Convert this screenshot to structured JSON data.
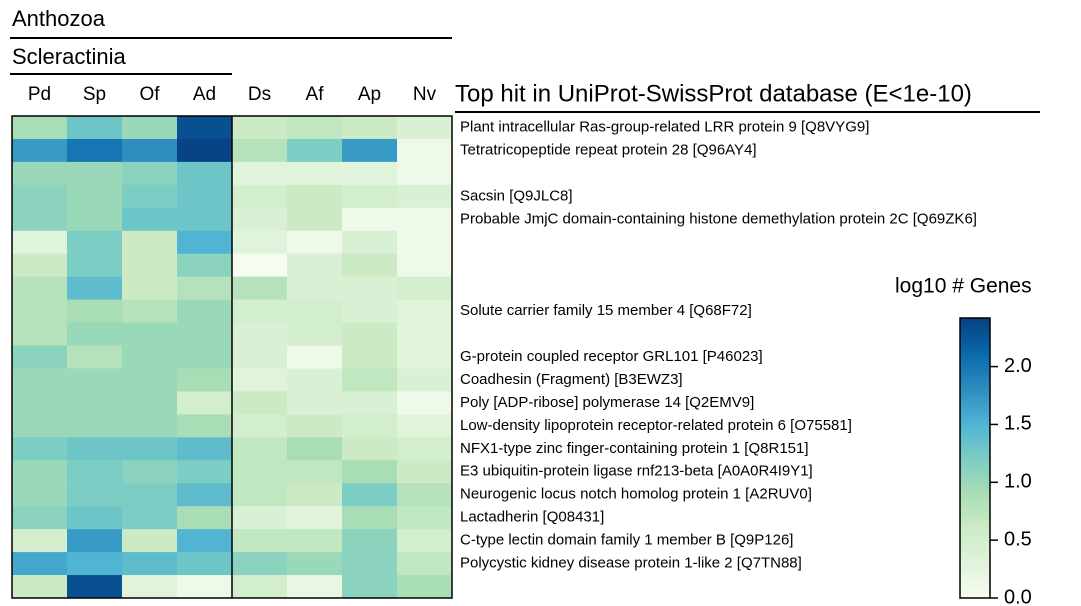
{
  "chart_data": {
    "type": "heatmap",
    "groups": [
      "Anthozoa",
      "Scleractinia"
    ],
    "categories": [
      "Pd",
      "Sp",
      "Of",
      "Ad",
      "Ds",
      "Af",
      "Ap",
      "Nv"
    ],
    "row_axis_title": "Top hit in UniProt-SwissProt database (E<1e-10)",
    "rows": [
      "Plant intracellular Ras-group-related LRR protein 9 [Q8VYG9]",
      "Tetratricopeptide repeat protein 28 [Q96AY4]",
      null,
      "Sacsin [Q9JLC8]",
      "Probable JmjC domain-containing histone demethylation protein 2C [Q69ZK6]",
      null,
      null,
      null,
      "Solute carrier family 15 member 4 [Q68F72]",
      null,
      "G-protein coupled receptor GRL101 [P46023]",
      "Coadhesin (Fragment) [B3EWZ3]",
      "Poly [ADP-ribose] polymerase 14 [Q2EMV9]",
      "Low-density lipoprotein receptor-related protein 6 [O75581]",
      "NFX1-type zinc finger-containing protein 1 [Q8R151]",
      "E3 ubiquitin-protein ligase rnf213-beta [A0A0R4I9Y1]",
      "Neurogenic locus notch homolog protein 1 [A2RUV0]",
      "Lactadherin [Q08431]",
      "C-type lectin domain family 1 member B [Q9P126]",
      "Polycystic kidney disease protein 1-like 2 [Q7TN88]",
      null
    ],
    "values": [
      [
        0.9,
        1.3,
        1.0,
        2.3,
        0.6,
        0.7,
        0.6,
        0.4
      ],
      [
        1.7,
        2.0,
        1.8,
        2.4,
        0.8,
        1.2,
        1.7,
        0.1
      ],
      [
        1.0,
        1.0,
        1.1,
        1.3,
        0.3,
        0.3,
        0.3,
        0.1
      ],
      [
        1.1,
        1.0,
        1.2,
        1.3,
        0.5,
        0.6,
        0.5,
        0.4
      ],
      [
        1.1,
        1.0,
        1.3,
        1.3,
        0.4,
        0.6,
        0.1,
        0.1
      ],
      [
        0.3,
        1.2,
        0.6,
        1.5,
        0.3,
        0.1,
        0.4,
        0.1
      ],
      [
        0.6,
        1.2,
        0.6,
        1.1,
        0.0,
        0.4,
        0.6,
        0.1
      ],
      [
        0.8,
        1.4,
        0.6,
        0.8,
        0.8,
        0.4,
        0.4,
        0.5
      ],
      [
        0.8,
        0.9,
        0.8,
        1.0,
        0.5,
        0.5,
        0.4,
        0.3
      ],
      [
        0.8,
        1.0,
        1.0,
        1.0,
        0.4,
        0.5,
        0.6,
        0.3
      ],
      [
        1.1,
        0.8,
        1.0,
        1.0,
        0.4,
        0.1,
        0.6,
        0.3
      ],
      [
        1.0,
        1.0,
        1.0,
        0.9,
        0.3,
        0.4,
        0.7,
        0.4
      ],
      [
        1.0,
        1.0,
        1.0,
        0.5,
        0.6,
        0.4,
        0.4,
        0.1
      ],
      [
        1.0,
        1.0,
        1.0,
        0.9,
        0.5,
        0.6,
        0.5,
        0.3
      ],
      [
        1.2,
        1.3,
        1.3,
        1.4,
        0.7,
        0.9,
        0.6,
        0.5
      ],
      [
        1.0,
        1.2,
        1.1,
        1.2,
        0.7,
        0.7,
        0.9,
        0.6
      ],
      [
        1.0,
        1.2,
        1.2,
        1.4,
        0.7,
        0.6,
        1.2,
        0.8
      ],
      [
        1.1,
        1.3,
        1.2,
        0.9,
        0.4,
        0.3,
        0.9,
        0.7
      ],
      [
        0.5,
        1.7,
        0.6,
        1.5,
        0.7,
        0.7,
        1.1,
        0.5
      ],
      [
        1.6,
        1.5,
        1.4,
        1.3,
        1.1,
        1.0,
        1.1,
        0.7
      ],
      [
        0.6,
        2.3,
        0.3,
        0.1,
        0.5,
        0.2,
        1.1,
        0.9
      ]
    ],
    "colorbar_title": "log10 # Genes",
    "zlim": [
      0,
      2.42
    ],
    "zticks": [
      {
        "value": 0,
        "label": "0.0"
      },
      0.5,
      {
        "value": 1,
        "label": "1.0"
      },
      1.5,
      {
        "value": 2,
        "label": "2.0"
      }
    ],
    "colorscale": [
      "#f7fcf0",
      "#e0f3db",
      "#ccebc5",
      "#a8ddb5",
      "#7bccc4",
      "#4eb3d3",
      "#2b8cbe",
      "#0868ac",
      "#084081"
    ]
  }
}
